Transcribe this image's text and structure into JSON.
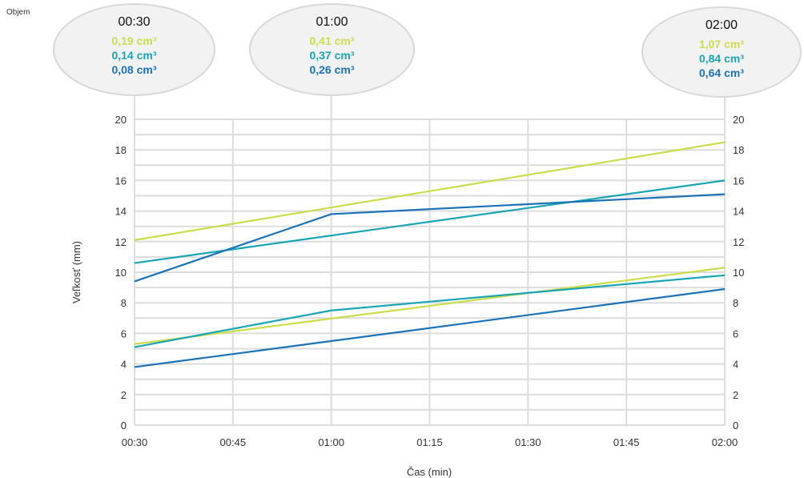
{
  "corner_label": "Objem",
  "colors": {
    "yellow": "#cddc4a",
    "teal": "#1aa5b5",
    "blue": "#1a72b8"
  },
  "callouts": [
    {
      "time": "00:30",
      "values": [
        {
          "text": "0,19 cm³",
          "color": "yellow"
        },
        {
          "text": "0,14 cm³",
          "color": "teal"
        },
        {
          "text": "0,08 cm³",
          "color": "blue"
        }
      ]
    },
    {
      "time": "01:00",
      "values": [
        {
          "text": "0,41 cm³",
          "color": "yellow"
        },
        {
          "text": "0,37 cm³",
          "color": "teal"
        },
        {
          "text": "0,26 cm³",
          "color": "blue"
        }
      ]
    },
    {
      "time": "02:00",
      "values": [
        {
          "text": "1,07 cm³",
          "color": "yellow"
        },
        {
          "text": "0,84 cm³",
          "color": "teal"
        },
        {
          "text": "0,64 cm³",
          "color": "blue"
        }
      ]
    }
  ],
  "chart_data": {
    "type": "line",
    "xlabel": "Čas (min)",
    "ylabel": "Veľkosť (mm)",
    "x_ticks": [
      "00:30",
      "00:45",
      "01:00",
      "01:15",
      "01:30",
      "01:45",
      "02:00"
    ],
    "x_minutes": [
      30,
      45,
      60,
      75,
      90,
      105,
      120
    ],
    "xlim": [
      30,
      120
    ],
    "ylim": [
      0,
      20
    ],
    "y_ticks": [
      0,
      2,
      4,
      6,
      8,
      10,
      12,
      14,
      16,
      18,
      20
    ],
    "grid": true,
    "series": [
      {
        "color": "yellow",
        "x": [
          30,
          120
        ],
        "y": [
          12.1,
          18.5
        ]
      },
      {
        "color": "teal",
        "x": [
          30,
          120
        ],
        "y": [
          10.6,
          16.0
        ]
      },
      {
        "color": "blue",
        "x": [
          30,
          60,
          120
        ],
        "y": [
          9.4,
          13.8,
          15.1
        ]
      },
      {
        "color": "yellow",
        "x": [
          30,
          120
        ],
        "y": [
          5.3,
          10.3
        ]
      },
      {
        "color": "teal",
        "x": [
          30,
          60,
          120
        ],
        "y": [
          5.1,
          7.5,
          9.8
        ]
      },
      {
        "color": "blue",
        "x": [
          30,
          120
        ],
        "y": [
          3.8,
          8.9
        ]
      }
    ]
  }
}
